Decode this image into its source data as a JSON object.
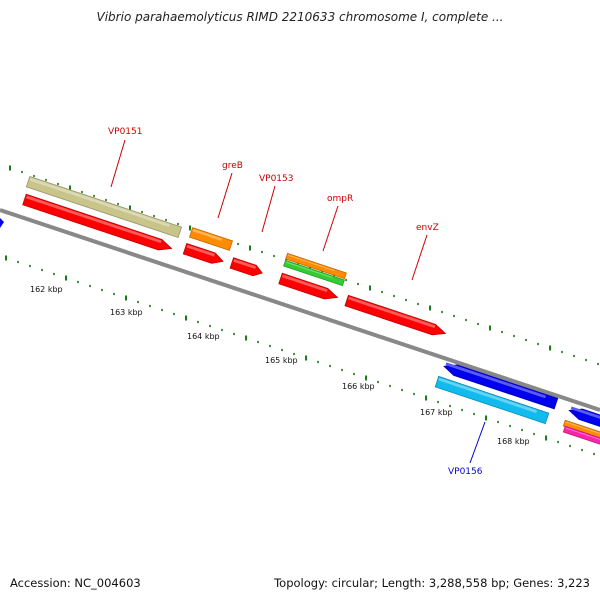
{
  "title": "Vibrio parahaemolyticus RIMD 2210633 chromosome I, complete ...",
  "footer": {
    "accession": "Accession: NC_004603",
    "topology": "Topology: circular; Length: 3,288,558 bp; Genes: 3,223"
  },
  "colors": {
    "backbone": "#888888",
    "tick": "#1a7a1a",
    "forward_label": "#cc0000",
    "reverse_label": "#0000cc",
    "red": "#ff0000",
    "orange": "#ff8c00",
    "green": "#33cc33",
    "olive": "#c8c48a",
    "blue": "#0000ee",
    "cyan": "#11bbee",
    "magenta": "#ff22aa"
  },
  "ruler": {
    "kbp_labels": [
      "162 kbp",
      "163 kbp",
      "164 kbp",
      "165 kbp",
      "166 kbp",
      "167 kbp",
      "168 kbp"
    ]
  },
  "gene_labels": [
    {
      "name": "VP0151",
      "strand": "forward"
    },
    {
      "name": "greB",
      "strand": "forward"
    },
    {
      "name": "VP0153",
      "strand": "forward"
    },
    {
      "name": "ompR",
      "strand": "forward"
    },
    {
      "name": "envZ",
      "strand": "forward"
    },
    {
      "name": "VP0156",
      "strand": "reverse"
    }
  ],
  "features": [
    {
      "id": "VP0151-track",
      "color": "olive"
    },
    {
      "id": "VP0151-gene",
      "color": "red"
    },
    {
      "id": "greB-track",
      "color": "orange"
    },
    {
      "id": "greB-gene",
      "color": "red"
    },
    {
      "id": "VP0153-gene",
      "color": "red"
    },
    {
      "id": "ompR-track-1",
      "color": "orange"
    },
    {
      "id": "ompR-track-2",
      "color": "green"
    },
    {
      "id": "ompR-gene",
      "color": "red"
    },
    {
      "id": "envZ-gene",
      "color": "red"
    },
    {
      "id": "VP0156-gene",
      "color": "blue"
    },
    {
      "id": "VP0156-track",
      "color": "cyan"
    },
    {
      "id": "next-gene",
      "color": "blue"
    },
    {
      "id": "next-track-1",
      "color": "orange"
    },
    {
      "id": "next-track-2",
      "color": "magenta"
    }
  ]
}
